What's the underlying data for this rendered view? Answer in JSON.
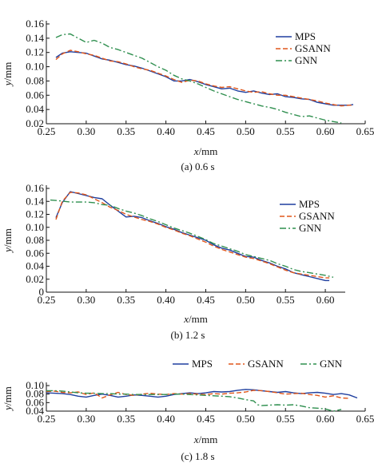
{
  "chart_data": [
    {
      "type": "line",
      "caption": "(a) 0.6 s",
      "xlabel_var": "x",
      "xlabel_unit": "/mm",
      "ylabel_var": "y",
      "ylabel_unit": "/mm",
      "xlim": [
        0.25,
        0.65
      ],
      "ylim": [
        0.02,
        0.16
      ],
      "xticks": [
        0.25,
        0.3,
        0.35,
        0.4,
        0.45,
        0.5,
        0.55,
        0.6,
        0.65
      ],
      "yticks": [
        0.02,
        0.04,
        0.06,
        0.08,
        0.1,
        0.12,
        0.14,
        0.16
      ],
      "xtick_labels": [
        "0.25",
        "0.30",
        "0.35",
        "0.40",
        "0.45",
        "0.50",
        "0.55",
        "0.60",
        "0.65"
      ],
      "ytick_labels": [
        "0.02",
        "0.04",
        "0.06",
        "0.08",
        "0.10",
        "0.12",
        "0.14",
        "0.16"
      ],
      "grid": false,
      "legend": "right",
      "series": [
        {
          "name": "MPS",
          "color": "#1f3f9f",
          "dash": "solid",
          "x": [
            0.262,
            0.27,
            0.28,
            0.29,
            0.3,
            0.31,
            0.32,
            0.33,
            0.34,
            0.35,
            0.36,
            0.37,
            0.38,
            0.39,
            0.4,
            0.41,
            0.42,
            0.43,
            0.44,
            0.45,
            0.46,
            0.47,
            0.48,
            0.49,
            0.5,
            0.51,
            0.52,
            0.53,
            0.54,
            0.55,
            0.56,
            0.57,
            0.58,
            0.59,
            0.6,
            0.61,
            0.62,
            0.63,
            0.635
          ],
          "y": [
            0.113,
            0.119,
            0.121,
            0.12,
            0.119,
            0.115,
            0.111,
            0.109,
            0.106,
            0.103,
            0.101,
            0.098,
            0.094,
            0.09,
            0.086,
            0.08,
            0.08,
            0.082,
            0.079,
            0.075,
            0.072,
            0.069,
            0.07,
            0.066,
            0.064,
            0.066,
            0.063,
            0.061,
            0.062,
            0.058,
            0.057,
            0.055,
            0.054,
            0.05,
            0.048,
            0.046,
            0.046,
            0.046,
            0.047
          ]
        },
        {
          "name": "GSANN",
          "color": "#e0561a",
          "dash": "6,3",
          "x": [
            0.262,
            0.27,
            0.28,
            0.29,
            0.3,
            0.31,
            0.32,
            0.33,
            0.34,
            0.35,
            0.36,
            0.37,
            0.38,
            0.39,
            0.4,
            0.41,
            0.42,
            0.43,
            0.44,
            0.45,
            0.46,
            0.47,
            0.48,
            0.49,
            0.5,
            0.51,
            0.52,
            0.53,
            0.54,
            0.55,
            0.56,
            0.57,
            0.58,
            0.59,
            0.6,
            0.61,
            0.62,
            0.63,
            0.635
          ],
          "y": [
            0.11,
            0.118,
            0.123,
            0.121,
            0.118,
            0.116,
            0.112,
            0.108,
            0.107,
            0.104,
            0.1,
            0.097,
            0.095,
            0.091,
            0.087,
            0.082,
            0.078,
            0.081,
            0.08,
            0.076,
            0.073,
            0.071,
            0.072,
            0.069,
            0.066,
            0.064,
            0.065,
            0.062,
            0.06,
            0.06,
            0.058,
            0.056,
            0.054,
            0.052,
            0.049,
            0.047,
            0.045,
            0.046,
            0.046
          ]
        },
        {
          "name": "GNN",
          "color": "#2f8f4f",
          "dash": "8,3,2,3",
          "x": [
            0.262,
            0.27,
            0.28,
            0.29,
            0.3,
            0.31,
            0.32,
            0.33,
            0.34,
            0.35,
            0.36,
            0.37,
            0.38,
            0.39,
            0.4,
            0.41,
            0.42,
            0.43,
            0.44,
            0.45,
            0.46,
            0.47,
            0.48,
            0.49,
            0.5,
            0.51,
            0.52,
            0.53,
            0.54,
            0.55,
            0.56,
            0.57,
            0.58,
            0.59,
            0.6,
            0.61,
            0.62
          ],
          "y": [
            0.141,
            0.145,
            0.146,
            0.14,
            0.134,
            0.137,
            0.133,
            0.127,
            0.124,
            0.12,
            0.116,
            0.112,
            0.106,
            0.1,
            0.095,
            0.088,
            0.083,
            0.08,
            0.076,
            0.071,
            0.066,
            0.062,
            0.058,
            0.054,
            0.051,
            0.048,
            0.045,
            0.043,
            0.04,
            0.036,
            0.033,
            0.03,
            0.031,
            0.028,
            0.025,
            0.023,
            0.021
          ]
        }
      ]
    },
    {
      "type": "line",
      "caption": "(b) 1.2 s",
      "xlabel_var": "x",
      "xlabel_unit": "/mm",
      "ylabel_var": "y",
      "ylabel_unit": "/mm",
      "xlim": [
        0.25,
        0.625
      ],
      "ylim": [
        0.0,
        0.16
      ],
      "xticks": [
        0.25,
        0.3,
        0.35,
        0.4,
        0.45,
        0.5,
        0.55,
        0.6
      ],
      "yticks": [
        0.0,
        0.02,
        0.04,
        0.06,
        0.08,
        0.1,
        0.12,
        0.14,
        0.16
      ],
      "xtick_labels": [
        "0.25",
        "0.30",
        "0.35",
        "0.40",
        "0.45",
        "0.50",
        "0.55",
        "0.60"
      ],
      "ytick_labels": [
        "0",
        "0.02",
        "0.04",
        "0.06",
        "0.08",
        "0.10",
        "0.12",
        "0.14",
        "0.16"
      ],
      "grid": false,
      "legend": "right",
      "series": [
        {
          "name": "MPS",
          "color": "#1f3f9f",
          "dash": "solid",
          "x": [
            0.262,
            0.27,
            0.28,
            0.29,
            0.3,
            0.31,
            0.32,
            0.33,
            0.34,
            0.35,
            0.36,
            0.37,
            0.38,
            0.39,
            0.4,
            0.41,
            0.42,
            0.43,
            0.44,
            0.45,
            0.46,
            0.47,
            0.48,
            0.49,
            0.5,
            0.51,
            0.52,
            0.53,
            0.54,
            0.55,
            0.56,
            0.57,
            0.58,
            0.59,
            0.6,
            0.605
          ],
          "y": [
            0.115,
            0.138,
            0.155,
            0.152,
            0.149,
            0.146,
            0.144,
            0.134,
            0.125,
            0.116,
            0.117,
            0.115,
            0.11,
            0.106,
            0.101,
            0.097,
            0.092,
            0.088,
            0.084,
            0.08,
            0.073,
            0.068,
            0.065,
            0.06,
            0.055,
            0.054,
            0.049,
            0.045,
            0.04,
            0.036,
            0.03,
            0.027,
            0.024,
            0.021,
            0.018,
            0.018
          ]
        },
        {
          "name": "GSANN",
          "color": "#e0561a",
          "dash": "6,3",
          "x": [
            0.262,
            0.27,
            0.28,
            0.29,
            0.3,
            0.31,
            0.32,
            0.33,
            0.34,
            0.35,
            0.36,
            0.37,
            0.38,
            0.39,
            0.4,
            0.41,
            0.42,
            0.43,
            0.44,
            0.45,
            0.46,
            0.47,
            0.48,
            0.49,
            0.5,
            0.51,
            0.52,
            0.53,
            0.54,
            0.55,
            0.56,
            0.57,
            0.58,
            0.59,
            0.6,
            0.605
          ],
          "y": [
            0.112,
            0.14,
            0.154,
            0.153,
            0.15,
            0.144,
            0.138,
            0.131,
            0.126,
            0.12,
            0.116,
            0.112,
            0.109,
            0.105,
            0.1,
            0.096,
            0.091,
            0.087,
            0.082,
            0.077,
            0.071,
            0.066,
            0.062,
            0.058,
            0.054,
            0.052,
            0.048,
            0.044,
            0.039,
            0.034,
            0.03,
            0.028,
            0.026,
            0.024,
            0.022,
            0.022
          ]
        },
        {
          "name": "GNN",
          "color": "#2f8f4f",
          "dash": "8,3,2,3",
          "x": [
            0.255,
            0.265,
            0.28,
            0.29,
            0.3,
            0.31,
            0.32,
            0.33,
            0.34,
            0.35,
            0.36,
            0.37,
            0.38,
            0.39,
            0.4,
            0.41,
            0.42,
            0.43,
            0.44,
            0.45,
            0.46,
            0.47,
            0.48,
            0.49,
            0.5,
            0.51,
            0.52,
            0.53,
            0.54,
            0.55,
            0.56,
            0.57,
            0.58,
            0.59,
            0.6,
            0.61
          ],
          "y": [
            0.142,
            0.141,
            0.139,
            0.139,
            0.139,
            0.138,
            0.135,
            0.134,
            0.129,
            0.125,
            0.122,
            0.118,
            0.113,
            0.109,
            0.104,
            0.099,
            0.095,
            0.091,
            0.086,
            0.081,
            0.075,
            0.071,
            0.067,
            0.063,
            0.058,
            0.055,
            0.052,
            0.049,
            0.044,
            0.04,
            0.035,
            0.032,
            0.03,
            0.028,
            0.026,
            0.023
          ]
        }
      ]
    },
    {
      "type": "line",
      "caption": "(c) 1.8 s",
      "xlabel_var": "x",
      "xlabel_unit": "/mm",
      "ylabel_var": "y",
      "ylabel_unit": "/mm",
      "xlim": [
        0.25,
        0.65
      ],
      "ylim": [
        0.04,
        0.1
      ],
      "xticks": [
        0.25,
        0.3,
        0.35,
        0.4,
        0.45,
        0.5,
        0.55,
        0.6,
        0.65
      ],
      "yticks": [
        0.04,
        0.06,
        0.08,
        0.1
      ],
      "xtick_labels": [
        "0.25",
        "0.30",
        "0.35",
        "0.40",
        "0.45",
        "0.50",
        "0.55",
        "0.60",
        "0.65"
      ],
      "ytick_labels": [
        "0.04",
        "0.06",
        "0.08",
        "0.10"
      ],
      "grid": false,
      "legend": "top",
      "series": [
        {
          "name": "MPS",
          "color": "#1f3f9f",
          "dash": "solid",
          "x": [
            0.25,
            0.26,
            0.27,
            0.28,
            0.29,
            0.3,
            0.31,
            0.32,
            0.33,
            0.34,
            0.35,
            0.36,
            0.37,
            0.38,
            0.39,
            0.4,
            0.41,
            0.42,
            0.43,
            0.44,
            0.45,
            0.46,
            0.47,
            0.48,
            0.49,
            0.5,
            0.51,
            0.52,
            0.53,
            0.54,
            0.55,
            0.56,
            0.57,
            0.58,
            0.59,
            0.6,
            0.61,
            0.62,
            0.63,
            0.64
          ],
          "y": [
            0.083,
            0.082,
            0.081,
            0.079,
            0.075,
            0.073,
            0.077,
            0.08,
            0.077,
            0.073,
            0.075,
            0.078,
            0.077,
            0.075,
            0.073,
            0.075,
            0.079,
            0.081,
            0.083,
            0.081,
            0.083,
            0.086,
            0.085,
            0.086,
            0.089,
            0.091,
            0.09,
            0.088,
            0.086,
            0.084,
            0.086,
            0.083,
            0.081,
            0.083,
            0.084,
            0.082,
            0.079,
            0.081,
            0.078,
            0.071
          ]
        },
        {
          "name": "GSANN",
          "color": "#e0561a",
          "dash": "6,3",
          "x": [
            0.25,
            0.26,
            0.27,
            0.28,
            0.29,
            0.3,
            0.31,
            0.32,
            0.33,
            0.34,
            0.35,
            0.36,
            0.37,
            0.38,
            0.39,
            0.4,
            0.41,
            0.42,
            0.43,
            0.44,
            0.45,
            0.46,
            0.47,
            0.48,
            0.49,
            0.5,
            0.51,
            0.52,
            0.53,
            0.54,
            0.55,
            0.56,
            0.57,
            0.58,
            0.59,
            0.6,
            0.61,
            0.62,
            0.63
          ],
          "y": [
            0.086,
            0.087,
            0.084,
            0.083,
            0.085,
            0.079,
            0.083,
            0.071,
            0.078,
            0.084,
            0.079,
            0.077,
            0.08,
            0.082,
            0.08,
            0.079,
            0.081,
            0.08,
            0.081,
            0.08,
            0.079,
            0.081,
            0.08,
            0.082,
            0.083,
            0.085,
            0.089,
            0.088,
            0.086,
            0.083,
            0.08,
            0.081,
            0.082,
            0.079,
            0.077,
            0.073,
            0.076,
            0.071,
            0.07
          ]
        },
        {
          "name": "GNN",
          "color": "#2f8f4f",
          "dash": "8,3,2,3",
          "x": [
            0.25,
            0.26,
            0.27,
            0.28,
            0.29,
            0.3,
            0.31,
            0.32,
            0.33,
            0.34,
            0.35,
            0.36,
            0.37,
            0.38,
            0.39,
            0.4,
            0.41,
            0.42,
            0.43,
            0.44,
            0.45,
            0.46,
            0.47,
            0.48,
            0.49,
            0.5,
            0.51,
            0.515,
            0.52,
            0.53,
            0.54,
            0.55,
            0.56,
            0.57,
            0.58,
            0.59,
            0.6,
            0.61,
            0.62
          ],
          "y": [
            0.088,
            0.088,
            0.087,
            0.085,
            0.083,
            0.082,
            0.082,
            0.081,
            0.081,
            0.08,
            0.08,
            0.079,
            0.079,
            0.079,
            0.079,
            0.079,
            0.08,
            0.08,
            0.079,
            0.078,
            0.077,
            0.076,
            0.075,
            0.074,
            0.071,
            0.067,
            0.064,
            0.055,
            0.053,
            0.054,
            0.055,
            0.054,
            0.055,
            0.052,
            0.048,
            0.047,
            0.045,
            0.04,
            0.044
          ]
        }
      ]
    }
  ]
}
